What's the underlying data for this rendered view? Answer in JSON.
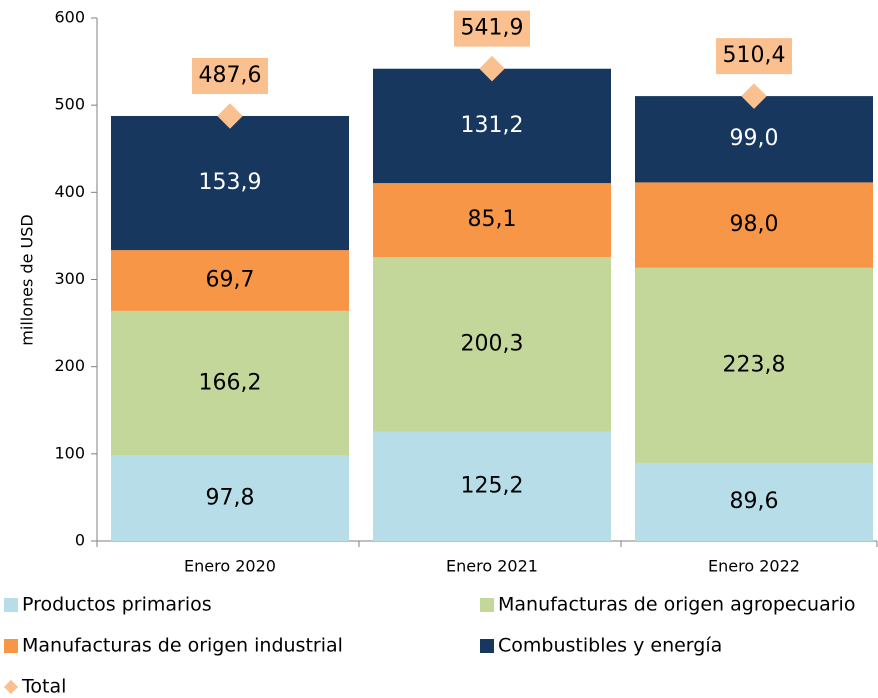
{
  "chart_data": {
    "type": "bar",
    "stacked": true,
    "y_label": "millones de USD",
    "categories": [
      "Enero 2020",
      "Enero 2021",
      "Enero 2022"
    ],
    "ylim": [
      0,
      600
    ],
    "yticks": [
      0,
      100,
      200,
      300,
      400,
      500,
      600
    ],
    "series": [
      {
        "name": "Productos primarios",
        "color": "#b7dde8",
        "label_color": "#000000",
        "values": [
          97.8,
          125.2,
          89.6
        ],
        "value_labels": [
          "97,8",
          "125,2",
          "89,6"
        ]
      },
      {
        "name": "Manufacturas de origen agropecuario",
        "color": "#c4d79b",
        "label_color": "#000000",
        "values": [
          166.2,
          200.3,
          223.8
        ],
        "value_labels": [
          "166,2",
          "200,3",
          "223,8"
        ]
      },
      {
        "name": "Manufacturas de origen industrial",
        "color": "#f79646",
        "label_color": "#000000",
        "values": [
          69.7,
          85.1,
          98.0
        ],
        "value_labels": [
          "69,7",
          "85,1",
          "98,0"
        ]
      },
      {
        "name": "Combustibles y energía",
        "color": "#17375e",
        "label_color": "#ffffff",
        "values": [
          153.9,
          131.2,
          99.0
        ],
        "value_labels": [
          "153,9",
          "131,2",
          "99,0"
        ]
      },
      {
        "name": "Total",
        "type": "scatter",
        "color": "#fac090",
        "label_color": "#000000",
        "values": [
          487.6,
          541.9,
          510.4
        ],
        "value_labels": [
          "487,6",
          "541,9",
          "510,4"
        ]
      }
    ]
  }
}
